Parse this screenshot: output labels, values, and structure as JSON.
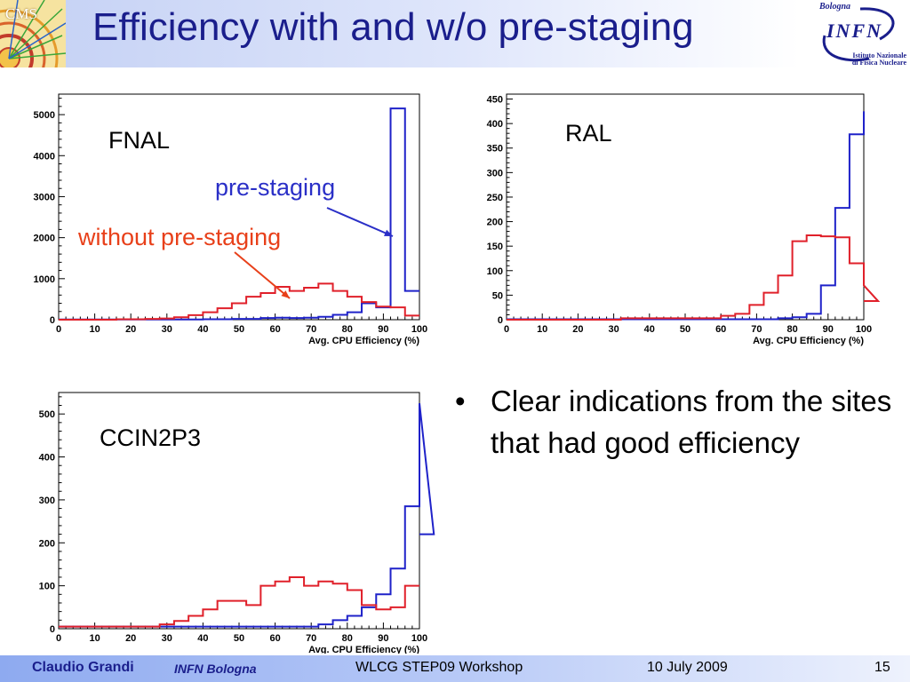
{
  "slide": {
    "title": "Efficiency with and w/o pre-staging",
    "logo_left_text": "CMS",
    "logo_right_city": "Bologna",
    "logo_right_name": "INFN",
    "logo_right_sub1": "Istituto Nazionale",
    "logo_right_sub2": "di Fisica Nucleare"
  },
  "bullets": [
    "Clear indications from the sites that had good efficiency"
  ],
  "footer": {
    "author": "Claudio Grandi",
    "institution": "INFN Bologna",
    "event": "WLCG STEP09 Workshop",
    "date": "10 July 2009",
    "page": "15"
  },
  "colors": {
    "title": "#1a1e8c",
    "pre_staging": "#1f22c9",
    "without_pre_staging": "#e0202a",
    "annotation_pre": "#2a2fc7",
    "annotation_without": "#e8401a"
  },
  "chart_data": [
    {
      "type": "histogram",
      "site_label": "FNAL",
      "xlabel": "Avg. CPU Efficiency (%)",
      "xlim": [
        0,
        100
      ],
      "ylim": [
        0,
        5500
      ],
      "yticks": [
        0,
        1000,
        2000,
        3000,
        4000,
        5000
      ],
      "xticks": [
        0,
        10,
        20,
        30,
        40,
        50,
        60,
        70,
        80,
        90,
        100
      ],
      "bin_width": 4,
      "series": [
        {
          "name": "pre-staging",
          "color": "#1f22c9",
          "values": [
            5,
            5,
            5,
            5,
            5,
            5,
            5,
            5,
            5,
            5,
            10,
            10,
            20,
            20,
            40,
            50,
            40,
            50,
            70,
            120,
            180,
            400,
            300,
            5150,
            700
          ]
        },
        {
          "name": "without pre-staging",
          "color": "#e0202a",
          "values": [
            0,
            0,
            0,
            0,
            10,
            10,
            20,
            30,
            60,
            110,
            180,
            280,
            400,
            560,
            650,
            800,
            700,
            780,
            880,
            700,
            560,
            430,
            320,
            300,
            100
          ]
        }
      ],
      "annotations": [
        {
          "text": "pre-staging",
          "color": "#2a2fc7",
          "points_to_bin": 93
        },
        {
          "text": "without pre-staging",
          "color": "#e8401a",
          "points_to_bin": 66
        }
      ]
    },
    {
      "type": "histogram",
      "site_label": "RAL",
      "xlabel": "Avg. CPU Efficiency (%)",
      "xlim": [
        0,
        100
      ],
      "ylim": [
        0,
        460
      ],
      "yticks": [
        0,
        50,
        100,
        150,
        200,
        250,
        300,
        350,
        400,
        450
      ],
      "xticks": [
        0,
        10,
        20,
        30,
        40,
        50,
        60,
        70,
        80,
        90,
        100
      ],
      "bin_width": 4,
      "series": [
        {
          "name": "pre-staging",
          "color": "#1f22c9",
          "values": [
            1,
            1,
            1,
            1,
            1,
            1,
            1,
            1,
            1,
            1,
            1,
            1,
            1,
            1,
            1,
            1,
            1,
            1,
            1,
            3,
            5,
            12,
            70,
            228,
            378,
            425
          ]
        },
        {
          "name": "without pre-staging",
          "color": "#e0202a",
          "values": [
            0,
            0,
            0,
            0,
            0,
            0,
            0,
            0,
            3,
            3,
            3,
            3,
            3,
            3,
            3,
            8,
            12,
            30,
            55,
            90,
            160,
            172,
            170,
            168,
            115,
            70,
            38
          ]
        }
      ]
    },
    {
      "type": "histogram",
      "site_label": "CCIN2P3",
      "xlabel": "Avg. CPU Efficiency (%)",
      "xlim": [
        0,
        100
      ],
      "ylim": [
        0,
        550
      ],
      "yticks": [
        0,
        100,
        200,
        300,
        400,
        500
      ],
      "xticks": [
        0,
        10,
        20,
        30,
        40,
        50,
        60,
        70,
        80,
        90,
        100
      ],
      "bin_width": 4,
      "series": [
        {
          "name": "pre-staging",
          "color": "#1f22c9",
          "values": [
            5,
            5,
            5,
            5,
            5,
            5,
            5,
            5,
            5,
            5,
            5,
            5,
            5,
            5,
            5,
            5,
            5,
            5,
            10,
            20,
            30,
            50,
            80,
            140,
            285,
            525,
            220
          ]
        },
        {
          "name": "without pre-staging",
          "color": "#e0202a",
          "values": [
            5,
            5,
            5,
            5,
            5,
            5,
            5,
            10,
            18,
            30,
            45,
            65,
            65,
            55,
            100,
            110,
            120,
            100,
            110,
            105,
            90,
            55,
            45,
            50,
            100,
            100
          ]
        }
      ]
    }
  ]
}
